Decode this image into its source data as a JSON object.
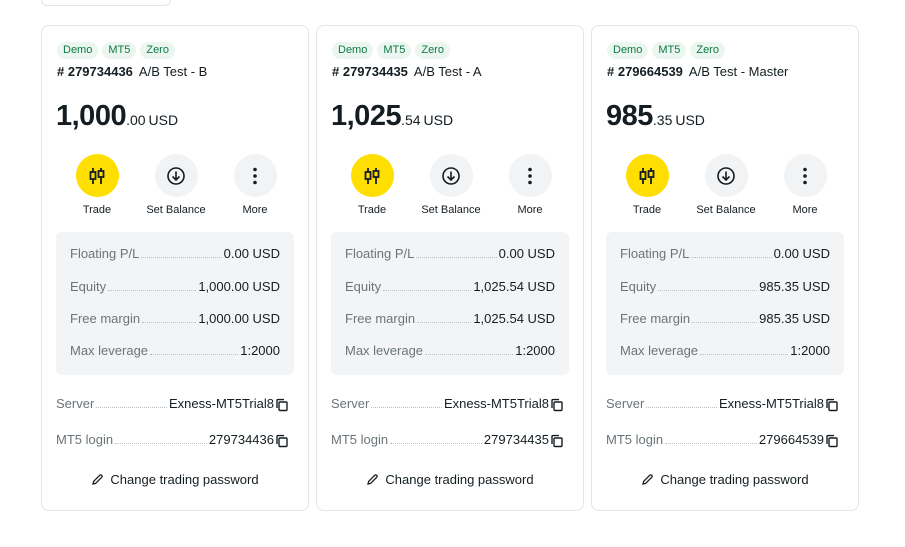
{
  "labels": {
    "trade": "Trade",
    "set_balance": "Set Balance",
    "more": "More",
    "floating_pl": "Floating P/L",
    "equity": "Equity",
    "free_margin": "Free margin",
    "max_leverage": "Max leverage",
    "server": "Server",
    "mt5_login": "MT5 login",
    "change_password": "Change trading password"
  },
  "colors": {
    "accent": "#ffde02",
    "tag_text": "#0f7a46",
    "tag_bg": "#eaf6ef"
  },
  "accounts": [
    {
      "tags": [
        "Demo",
        "MT5",
        "Zero"
      ],
      "number": "# 279734436",
      "name": "A/B Test - B",
      "balance_int": "1,000",
      "balance_dec": ".00",
      "currency": "USD",
      "floating_pl": "0.00 USD",
      "equity": "1,000.00 USD",
      "free_margin": "1,000.00 USD",
      "max_leverage": "1:2000",
      "server": "Exness-MT5Trial8",
      "login": "279734436"
    },
    {
      "tags": [
        "Demo",
        "MT5",
        "Zero"
      ],
      "number": "# 279734435",
      "name": "A/B Test - A",
      "balance_int": "1,025",
      "balance_dec": ".54",
      "currency": "USD",
      "floating_pl": "0.00 USD",
      "equity": "1,025.54 USD",
      "free_margin": "1,025.54 USD",
      "max_leverage": "1:2000",
      "server": "Exness-MT5Trial8",
      "login": "279734435"
    },
    {
      "tags": [
        "Demo",
        "MT5",
        "Zero"
      ],
      "number": "# 279664539",
      "name": "A/B Test - Master",
      "balance_int": "985",
      "balance_dec": ".35",
      "currency": "USD",
      "floating_pl": "0.00 USD",
      "equity": "985.35 USD",
      "free_margin": "985.35 USD",
      "max_leverage": "1:2000",
      "server": "Exness-MT5Trial8",
      "login": "279664539"
    }
  ],
  "icons": {
    "trade": "candlestick-icon",
    "set_balance": "arrow-down-circle-icon",
    "more": "vertical-dots-icon",
    "copy": "copy-icon",
    "edit": "pencil-icon"
  }
}
